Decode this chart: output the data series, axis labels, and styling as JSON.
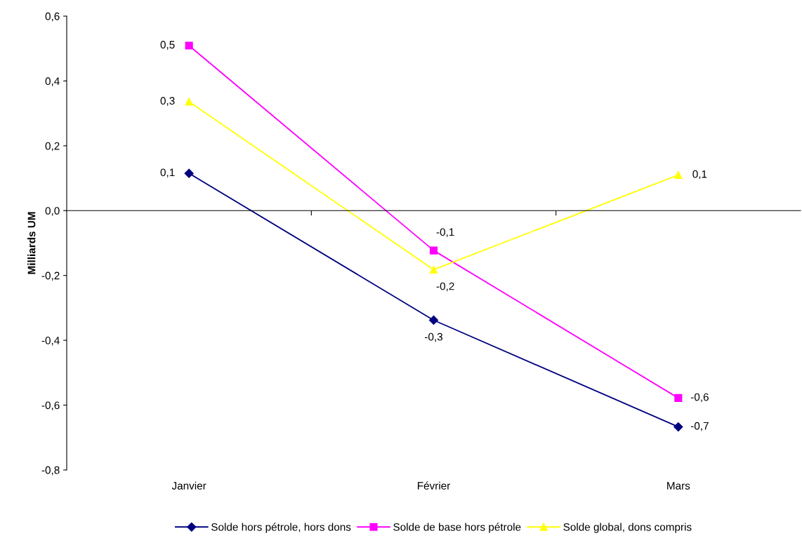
{
  "chart_data": {
    "type": "line",
    "ylabel": "Milliards UM",
    "categories": [
      "Janvier",
      "Février",
      "Mars"
    ],
    "series": [
      {
        "name": "Solde hors pétrole, hors dons",
        "color": "#000080",
        "marker": "diamond",
        "values": [
          0.115,
          -0.338,
          -0.667
        ],
        "value_labels": [
          "0,1",
          "-0,3",
          "-0,7"
        ]
      },
      {
        "name": "Solde de base hors pétrole",
        "color": "#ff00ff",
        "marker": "square",
        "values": [
          0.509,
          -0.123,
          -0.578
        ],
        "value_labels": [
          "0,5",
          "-0,1",
          "-0,6"
        ]
      },
      {
        "name": "Solde global, dons compris",
        "color": "#ffff00",
        "marker": "triangle",
        "values": [
          0.336,
          -0.182,
          0.11
        ],
        "value_labels": [
          "0,3",
          "-0,2",
          "0,1"
        ]
      }
    ],
    "ylim": [
      -0.8,
      0.6
    ],
    "yticks": [
      {
        "value": -0.8,
        "label": "-0,8"
      },
      {
        "value": -0.6,
        "label": "-0,6"
      },
      {
        "value": -0.4,
        "label": "-0,4"
      },
      {
        "value": -0.2,
        "label": "-0,2"
      },
      {
        "value": 0,
        "label": "0,0"
      },
      {
        "value": 0.2,
        "label": "0,2"
      },
      {
        "value": 0.4,
        "label": "0,4"
      },
      {
        "value": 0.6,
        "label": "0,6"
      }
    ],
    "legend": "bottom",
    "line_style": "solid"
  }
}
